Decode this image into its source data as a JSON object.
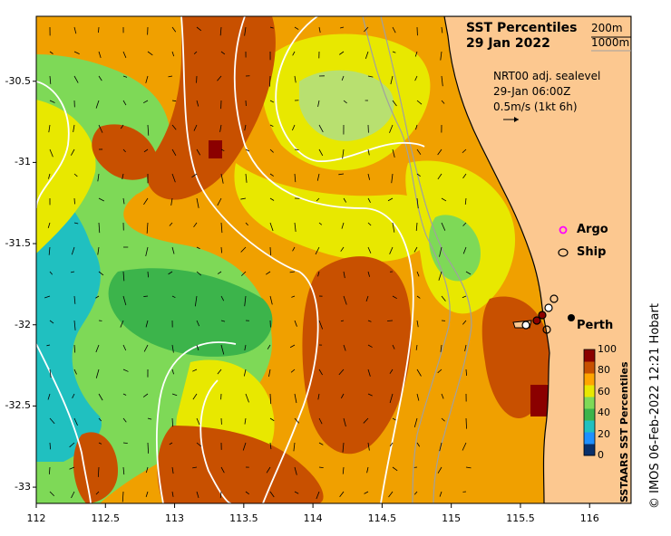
{
  "title": {
    "line1": "SST Percentiles",
    "line2": "29 Jan 2022"
  },
  "depth_legend": {
    "line1": "200m",
    "line2": "1000m"
  },
  "current_info": {
    "line1": "NRT00 adj. sealevel",
    "line2": "29-Jan 06:00Z",
    "line3": "0.5m/s (1kt 6h)"
  },
  "markers": {
    "argo": "Argo",
    "ship": "Ship",
    "city": "Perth"
  },
  "colorbar": {
    "title": "SSTAARS SST Percentiles",
    "ticks": [
      "100",
      "80",
      "60",
      "40",
      "20",
      "0"
    ],
    "colors": [
      "#08306b",
      "#1e90ff",
      "#20c0c0",
      "#3cb44b",
      "#7ed957",
      "#e8e800",
      "#ffa500",
      "#c85000",
      "#8b0000"
    ]
  },
  "credit": "© IMOS 06-Feb-2022 12:21 Hobart",
  "axes": {
    "x_ticks": [
      "112",
      "112.5",
      "113",
      "113.5",
      "114",
      "114.5",
      "115",
      "115.5",
      "116"
    ],
    "y_ticks": [
      "-30.5",
      "-31",
      "-31.5",
      "-32",
      "-32.5",
      "-33"
    ],
    "x_range": [
      112,
      116.3
    ],
    "y_range": [
      -33.1,
      -30.1
    ]
  },
  "colors": {
    "land": "#fcc890",
    "coast": "#000000",
    "contour": "#ffffff",
    "bathymetry": "#a0a0a0",
    "argo": "#ff00ff"
  }
}
